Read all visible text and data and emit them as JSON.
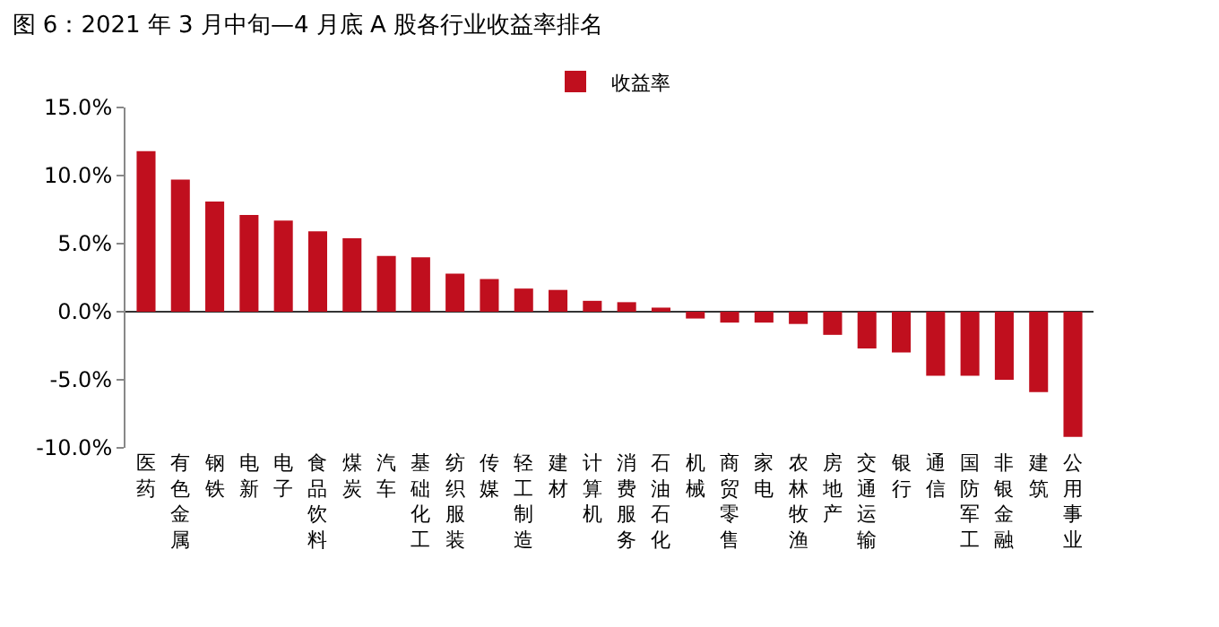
{
  "chart_data": {
    "type": "bar",
    "title": "图 6：2021 年 3 月中旬—4 月底 A 股各行业收益率排名",
    "categories": [
      "医药",
      "有色金属",
      "钢铁",
      "电新",
      "电子",
      "食品饮料",
      "煤炭",
      "汽车",
      "基础化工",
      "纺织服装",
      "传媒",
      "轻工制造",
      "建材",
      "计算机",
      "消费服务",
      "石油石化",
      "机械",
      "商贸零售",
      "家电",
      "农林牧渔",
      "房地产",
      "交通运输",
      "银行",
      "通信",
      "国防军工",
      "非银金融",
      "建筑",
      "公用事业"
    ],
    "series": [
      {
        "name": "收益率",
        "color": "#c00f1e",
        "values": [
          11.8,
          9.7,
          8.1,
          7.1,
          6.7,
          5.9,
          5.4,
          4.1,
          4.0,
          2.8,
          2.4,
          1.7,
          1.6,
          0.8,
          0.7,
          0.3,
          -0.5,
          -0.8,
          -0.8,
          -0.9,
          -1.7,
          -2.7,
          -3.0,
          -4.7,
          -4.7,
          -5.0,
          -5.9,
          -9.2
        ]
      }
    ],
    "ylim": [
      -10,
      15
    ],
    "yticks": [
      {
        "value": -10,
        "label": "-10.0%"
      },
      {
        "value": -5,
        "label": "-5.0%"
      },
      {
        "value": 0,
        "label": "0.0%"
      },
      {
        "value": 5,
        "label": "5.0%"
      },
      {
        "value": 10,
        "label": "10.0%"
      },
      {
        "value": 15,
        "label": "15.0%"
      }
    ],
    "legend": "top"
  }
}
